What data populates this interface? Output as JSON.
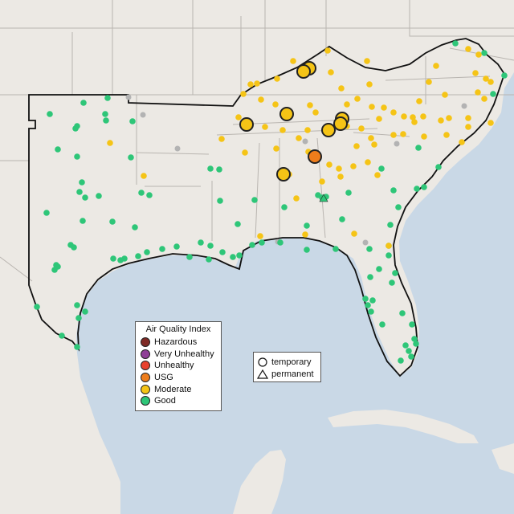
{
  "legend": {
    "title": "Air Quality Index",
    "categories": [
      {
        "label": "Hazardous",
        "color": "#7e2a25"
      },
      {
        "label": "Very Unhealthy",
        "color": "#8f3f97"
      },
      {
        "label": "Unhealthy",
        "color": "#e8412e"
      },
      {
        "label": "USG",
        "color": "#ee7d1b"
      },
      {
        "label": "Moderate",
        "color": "#f5c416"
      },
      {
        "label": "Good",
        "color": "#2ec678"
      }
    ]
  },
  "monitor_types": {
    "temporary": "temporary",
    "permanent": "permanent"
  },
  "colors": {
    "water": "#c9d8e6",
    "land": "#ece9e4",
    "region": "#f2efea",
    "boundary": "#b9b5b0",
    "gray_marker": "#b3b3b3"
  }
}
